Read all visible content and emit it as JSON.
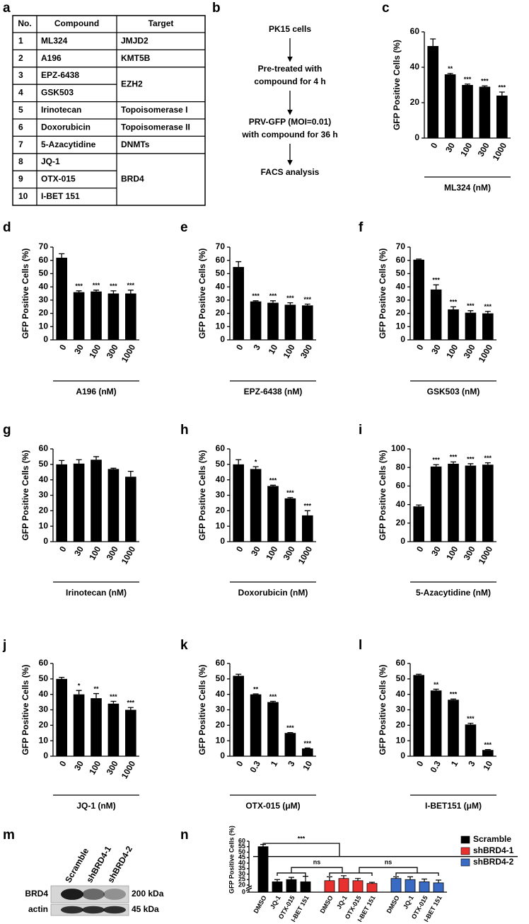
{
  "table": {
    "label": "a",
    "header": [
      "No.",
      "Compound",
      "Target"
    ],
    "rows": [
      [
        1,
        "ML324",
        "JMJD2"
      ],
      [
        2,
        "A196",
        "KMT5B"
      ],
      [
        3,
        "EPZ-6438",
        "EZH2"
      ],
      [
        4,
        "GSK503",
        null
      ],
      [
        5,
        "Irinotecan",
        "Topoisomerase I"
      ],
      [
        6,
        "Doxorubicin",
        "Topoisomerase II"
      ],
      [
        7,
        "5-Azacytidine",
        "DNMTs"
      ],
      [
        8,
        "JQ-1",
        "BRD4"
      ],
      [
        9,
        "OTX-015",
        null
      ],
      [
        10,
        "I-BET 151",
        null
      ]
    ]
  },
  "flowchart": {
    "label": "b",
    "steps": [
      [
        "PK15 cells"
      ],
      [
        "Pre-treated with",
        "compound for 4 h"
      ],
      [
        "PRV-GFP (MOI=0.01)",
        "with compound for 36 h"
      ],
      [
        "FACS analysis"
      ]
    ]
  },
  "blot": {
    "label": "m",
    "lanes": [
      "Scramble",
      "shBRD4-1",
      "shBRD4-2"
    ],
    "rows": [
      {
        "protein": "BRD4",
        "size": "200 kDa"
      },
      {
        "protein": "actin",
        "size": "45 kDa"
      }
    ]
  },
  "chart_data": [
    {
      "type": "bar",
      "label": "c",
      "ylabel": "GFP Positive Cells (%)",
      "xlabel": "ML324 (nM)",
      "color": "#000000",
      "categories": [
        "0",
        "30",
        "100",
        "300",
        "1000"
      ],
      "values": [
        52,
        36,
        30,
        29,
        24
      ],
      "errors": [
        4,
        0.5,
        0.5,
        0.5,
        2
      ],
      "annotations": [
        null,
        "**",
        "***",
        "***",
        "***"
      ],
      "ylim": [
        0,
        60
      ],
      "yticks": [
        0,
        20,
        40,
        60
      ]
    },
    {
      "type": "bar",
      "label": "d",
      "ylabel": "GFP Positive Cells (%)",
      "xlabel": "A196 (nM)",
      "color": "#000000",
      "categories": [
        "0",
        "30",
        "100",
        "300",
        "1000"
      ],
      "values": [
        62,
        36,
        36.5,
        35,
        35
      ],
      "errors": [
        3,
        1,
        1,
        2,
        2.5
      ],
      "annotations": [
        null,
        "***",
        "***",
        "***",
        "***"
      ],
      "ylim": [
        0,
        70
      ],
      "yticks": [
        0,
        10,
        20,
        30,
        40,
        50,
        60,
        70
      ]
    },
    {
      "type": "bar",
      "label": "e",
      "ylabel": "GFP Positive Cells (%)",
      "xlabel": "EPZ-6438 (nM)",
      "color": "#000000",
      "categories": [
        "0",
        "3",
        "10",
        "100",
        "300"
      ],
      "values": [
        55,
        29,
        28,
        26.5,
        26
      ],
      "errors": [
        4,
        0.5,
        1.5,
        1.5,
        1
      ],
      "annotations": [
        null,
        "***",
        "***",
        "***",
        "***"
      ],
      "ylim": [
        0,
        70
      ],
      "yticks": [
        0,
        10,
        20,
        30,
        40,
        50,
        60,
        70
      ]
    },
    {
      "type": "bar",
      "label": "f",
      "ylabel": "GFP Positive Cells (%)",
      "xlabel": "GSK503 (nM)",
      "color": "#000000",
      "categories": [
        "0",
        "30",
        "100",
        "300",
        "1000"
      ],
      "values": [
        60.5,
        38,
        23,
        20.5,
        20
      ],
      "errors": [
        0.5,
        3.5,
        2,
        1.5,
        1.5
      ],
      "annotations": [
        null,
        "***",
        "***",
        "***",
        "***"
      ],
      "ylim": [
        0,
        70
      ],
      "yticks": [
        0,
        10,
        20,
        30,
        40,
        50,
        60,
        70
      ]
    },
    {
      "type": "bar",
      "label": "g",
      "ylabel": "GFP Positive Cells (%)",
      "xlabel": "Irinotecan (nM)",
      "color": "#000000",
      "categories": [
        "0",
        "30",
        "100",
        "300",
        "1000"
      ],
      "values": [
        50,
        50.5,
        53,
        47,
        42
      ],
      "errors": [
        2.5,
        2.5,
        2,
        0.5,
        3.5
      ],
      "annotations": [
        null,
        null,
        null,
        null,
        null
      ],
      "ylim": [
        0,
        60
      ],
      "yticks": [
        0,
        10,
        20,
        30,
        40,
        50,
        60
      ]
    },
    {
      "type": "bar",
      "label": "h",
      "ylabel": "GFP Positive Cells (%)",
      "xlabel": "Doxorubicin (nM)",
      "color": "#000000",
      "categories": [
        "0",
        "30",
        "100",
        "300",
        "1000"
      ],
      "values": [
        50,
        47,
        36,
        28,
        17
      ],
      "errors": [
        3,
        1.5,
        0.5,
        0.5,
        3
      ],
      "annotations": [
        null,
        "*",
        "***",
        "***",
        "***"
      ],
      "ylim": [
        0,
        60
      ],
      "yticks": [
        0,
        10,
        20,
        30,
        40,
        50,
        60
      ]
    },
    {
      "type": "bar",
      "label": "i",
      "ylabel": "GFP Positive Cells (%)",
      "xlabel": "5-Azacytidine (nM)",
      "color": "#000000",
      "categories": [
        "0",
        "30",
        "100",
        "300",
        "1000"
      ],
      "values": [
        38,
        81,
        84,
        82,
        83
      ],
      "errors": [
        1.5,
        2,
        2,
        2,
        2
      ],
      "annotations": [
        null,
        "***",
        "***",
        "***",
        "***"
      ],
      "ylim": [
        0,
        100
      ],
      "yticks": [
        0,
        20,
        40,
        60,
        80,
        100
      ]
    },
    {
      "type": "bar",
      "label": "j",
      "ylabel": "GFP Positive Cells (%)",
      "xlabel": "JQ-1 (nM)",
      "color": "#000000",
      "categories": [
        "0",
        "30",
        "100",
        "300",
        "1000"
      ],
      "values": [
        50,
        40,
        37.5,
        34,
        30
      ],
      "errors": [
        1,
        2.5,
        3,
        1.5,
        1.5
      ],
      "annotations": [
        null,
        "*",
        "**",
        "***",
        "***"
      ],
      "ylim": [
        0,
        60
      ],
      "yticks": [
        0,
        10,
        20,
        30,
        40,
        50,
        60
      ]
    },
    {
      "type": "bar",
      "label": "k",
      "ylabel": "GFP Positive Cells (%)",
      "xlabel": "OTX-015 (μM)",
      "color": "#000000",
      "categories": [
        "0",
        "0.3",
        "1",
        "3",
        "10"
      ],
      "values": [
        52,
        40,
        35,
        15,
        5
      ],
      "errors": [
        1,
        0.3,
        0.5,
        0.3,
        0.3
      ],
      "annotations": [
        null,
        "**",
        "***",
        "***",
        "***"
      ],
      "ylim": [
        0,
        60
      ],
      "yticks": [
        0,
        10,
        20,
        30,
        40,
        50,
        60
      ]
    },
    {
      "type": "bar",
      "label": "l",
      "ylabel": "GFP Positive Cells (%)",
      "xlabel": "I-BET151 (μM)",
      "color": "#000000",
      "categories": [
        "0",
        "0.3",
        "1",
        "3",
        "10"
      ],
      "values": [
        52.5,
        42.5,
        36.5,
        20.5,
        4
      ],
      "errors": [
        0.5,
        0.8,
        0.5,
        0.8,
        0.3
      ],
      "annotations": [
        null,
        "**",
        "***",
        "***",
        "***"
      ],
      "ylim": [
        0,
        60
      ],
      "yticks": [
        0,
        10,
        20,
        30,
        40,
        50,
        60
      ]
    },
    {
      "type": "grouped_bar",
      "label": "n",
      "ylabel": "GFP Positive Cells (%)",
      "categories": [
        "DMSO",
        "JQ-1",
        "OTX-015",
        "I-BET 151"
      ],
      "series": [
        {
          "name": "Scramble",
          "color": "#000000",
          "values": [
            55,
            23,
            25,
            23
          ],
          "errors": [
            2,
            2,
            2,
            5
          ]
        },
        {
          "name": "shBRD4-1",
          "color": "#e8312f",
          "values": [
            24,
            26,
            24,
            21.5
          ],
          "errors": [
            3.5,
            2.5,
            2,
            1
          ]
        },
        {
          "name": "shBRD4-2",
          "color": "#3a6bc4",
          "values": [
            26,
            25,
            23,
            22
          ],
          "errors": [
            1.5,
            2.5,
            2.5,
            2.5
          ]
        }
      ],
      "annotations": [
        "***",
        "ns",
        "ns"
      ],
      "ylim": [
        0,
        60
      ],
      "yticks": [
        0,
        20,
        25,
        30,
        35,
        40,
        45,
        50,
        55,
        60
      ],
      "ybreak": [
        0,
        20
      ],
      "legend": "upper right"
    }
  ]
}
